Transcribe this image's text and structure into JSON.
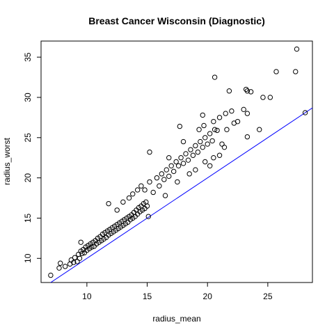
{
  "chart_data": {
    "type": "scatter",
    "title": "Breast Cancer Wisconsin (Diagnostic)",
    "xlabel": "radius_mean",
    "ylabel": "radius_worst",
    "xlim": [
      6.2,
      28.7
    ],
    "ylim": [
      7.0,
      37.0
    ],
    "x_ticks": [
      10,
      15,
      20,
      25
    ],
    "y_ticks": [
      10,
      15,
      20,
      25,
      30,
      35
    ],
    "grid": false,
    "legend": "none",
    "point_color": "#000000",
    "series": [
      {
        "marker": "open-circle",
        "points": [
          [
            7.0,
            7.9
          ],
          [
            7.7,
            8.8
          ],
          [
            7.8,
            9.4
          ],
          [
            8.2,
            9.0
          ],
          [
            8.6,
            9.3
          ],
          [
            8.7,
            9.8
          ],
          [
            8.9,
            9.5
          ],
          [
            9.0,
            10.1
          ],
          [
            9.2,
            9.6
          ],
          [
            9.3,
            10.5
          ],
          [
            9.4,
            10.0
          ],
          [
            9.5,
            10.9
          ],
          [
            9.6,
            10.6
          ],
          [
            9.7,
            11.1
          ],
          [
            9.8,
            10.7
          ],
          [
            9.9,
            11.4
          ],
          [
            9.5,
            12.0
          ],
          [
            10.0,
            11.0
          ],
          [
            10.1,
            11.6
          ],
          [
            10.2,
            11.2
          ],
          [
            10.3,
            11.8
          ],
          [
            10.4,
            11.4
          ],
          [
            10.5,
            12.0
          ],
          [
            10.6,
            11.5
          ],
          [
            10.7,
            12.2
          ],
          [
            10.8,
            11.8
          ],
          [
            10.9,
            12.5
          ],
          [
            11.0,
            12.0
          ],
          [
            11.1,
            12.7
          ],
          [
            11.2,
            12.2
          ],
          [
            11.3,
            13.0
          ],
          [
            11.4,
            12.4
          ],
          [
            11.5,
            13.2
          ],
          [
            11.6,
            12.6
          ],
          [
            11.7,
            13.4
          ],
          [
            11.8,
            12.9
          ],
          [
            11.9,
            13.6
          ],
          [
            12.0,
            13.1
          ],
          [
            12.1,
            13.8
          ],
          [
            12.2,
            13.3
          ],
          [
            12.3,
            14.0
          ],
          [
            12.4,
            13.5
          ],
          [
            12.5,
            14.2
          ],
          [
            12.6,
            13.7
          ],
          [
            12.7,
            14.4
          ],
          [
            12.8,
            13.9
          ],
          [
            12.9,
            14.6
          ],
          [
            13.0,
            14.1
          ],
          [
            13.1,
            14.8
          ],
          [
            13.2,
            14.3
          ],
          [
            13.3,
            15.0
          ],
          [
            13.4,
            14.5
          ],
          [
            13.5,
            15.2
          ],
          [
            13.6,
            14.8
          ],
          [
            13.7,
            15.4
          ],
          [
            13.8,
            15.0
          ],
          [
            13.9,
            15.7
          ],
          [
            14.0,
            15.2
          ],
          [
            14.1,
            16.0
          ],
          [
            14.2,
            15.5
          ],
          [
            14.3,
            16.3
          ],
          [
            14.4,
            15.8
          ],
          [
            14.5,
            16.5
          ],
          [
            14.6,
            16.0
          ],
          [
            14.7,
            16.8
          ],
          [
            14.8,
            16.2
          ],
          [
            14.9,
            17.0
          ],
          [
            15.0,
            16.5
          ],
          [
            15.1,
            15.2
          ],
          [
            11.8,
            16.8
          ],
          [
            12.5,
            16.0
          ],
          [
            13.0,
            17.0
          ],
          [
            13.5,
            17.5
          ],
          [
            13.8,
            18.0
          ],
          [
            14.2,
            18.5
          ],
          [
            14.5,
            19.0
          ],
          [
            14.8,
            18.5
          ],
          [
            15.2,
            19.5
          ],
          [
            15.5,
            18.2
          ],
          [
            15.8,
            20.0
          ],
          [
            16.0,
            19.0
          ],
          [
            16.2,
            20.5
          ],
          [
            16.4,
            19.8
          ],
          [
            16.6,
            21.0
          ],
          [
            16.8,
            20.2
          ],
          [
            17.0,
            21.5
          ],
          [
            17.2,
            20.8
          ],
          [
            17.4,
            22.0
          ],
          [
            17.6,
            21.5
          ],
          [
            17.8,
            22.5
          ],
          [
            18.0,
            21.8
          ],
          [
            18.2,
            23.0
          ],
          [
            18.4,
            22.2
          ],
          [
            18.6,
            23.5
          ],
          [
            18.8,
            22.8
          ],
          [
            19.0,
            24.0
          ],
          [
            19.2,
            23.2
          ],
          [
            19.4,
            24.5
          ],
          [
            19.6,
            23.8
          ],
          [
            19.8,
            25.0
          ],
          [
            20.0,
            24.2
          ],
          [
            20.2,
            25.5
          ],
          [
            20.4,
            24.6
          ],
          [
            20.6,
            26.0
          ],
          [
            15.2,
            23.2
          ],
          [
            16.5,
            17.8
          ],
          [
            17.5,
            19.5
          ],
          [
            18.5,
            20.5
          ],
          [
            19.0,
            21.0
          ],
          [
            19.8,
            22.0
          ],
          [
            20.2,
            21.5
          ],
          [
            20.5,
            22.5
          ],
          [
            21.0,
            22.8
          ],
          [
            21.2,
            24.2
          ],
          [
            21.4,
            23.8
          ],
          [
            21.6,
            26.0
          ],
          [
            16.8,
            22.5
          ],
          [
            18.0,
            24.5
          ],
          [
            19.3,
            26.0
          ],
          [
            19.7,
            26.5
          ],
          [
            20.5,
            27.0
          ],
          [
            21.0,
            27.5
          ],
          [
            21.5,
            28.0
          ],
          [
            22.0,
            28.3
          ],
          [
            22.5,
            27.0
          ],
          [
            23.0,
            28.5
          ],
          [
            23.2,
            31.0
          ],
          [
            23.3,
            30.8
          ],
          [
            23.6,
            30.7
          ],
          [
            24.6,
            30.0
          ],
          [
            25.2,
            30.0
          ],
          [
            20.6,
            32.5
          ],
          [
            21.8,
            30.8
          ],
          [
            23.3,
            28.0
          ],
          [
            24.3,
            26.0
          ],
          [
            25.7,
            33.2
          ],
          [
            27.3,
            33.2
          ],
          [
            27.4,
            36.0
          ],
          [
            28.1,
            28.1
          ],
          [
            23.3,
            25.1
          ],
          [
            22.2,
            26.8
          ],
          [
            19.6,
            27.8
          ],
          [
            17.7,
            26.4
          ],
          [
            20.8,
            25.9
          ]
        ]
      }
    ],
    "reference_line": {
      "from": [
        6.2,
        6.2
      ],
      "to": [
        28.7,
        28.7
      ],
      "color": "#0000ff"
    }
  }
}
